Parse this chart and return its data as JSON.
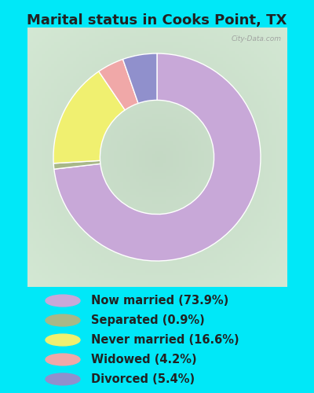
{
  "title": "Marital status in Cooks Point, TX",
  "slices": [
    73.9,
    0.9,
    16.6,
    4.2,
    5.4
  ],
  "labels": [
    "Now married (73.9%)",
    "Separated (0.9%)",
    "Never married (16.6%)",
    "Widowed (4.2%)",
    "Divorced (5.4%)"
  ],
  "colors": [
    "#c8a8d8",
    "#a8b888",
    "#f0f070",
    "#f0a8a8",
    "#9090cc"
  ],
  "background_cyan": "#00e8f8",
  "title_fontsize": 13,
  "startangle": 90,
  "legend_fontsize": 10.5
}
